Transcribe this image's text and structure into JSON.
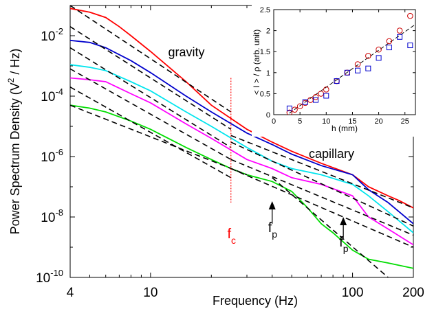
{
  "chart_data": [
    {
      "type": "line",
      "xscale": "log",
      "yscale": "log",
      "xlim": [
        4,
        200
      ],
      "ylim": [
        1e-10,
        0.1
      ],
      "xlabel": "Frequency (Hz)",
      "ylabel": "Power Spectrum Density (V",
      "ylabel_sup": "2",
      "ylabel_tail": " / Hz)",
      "xticks": [
        {
          "value": 4,
          "label": "4"
        },
        {
          "value": 10,
          "label": "10"
        },
        {
          "value": 100,
          "label": "100"
        },
        {
          "value": 200,
          "label": "200"
        }
      ],
      "yticks": [
        {
          "value": 1e-10,
          "base": "10",
          "exp": "-10"
        },
        {
          "value": 1e-08,
          "base": "10",
          "exp": "-8"
        },
        {
          "value": 1e-06,
          "base": "10",
          "exp": "-6"
        },
        {
          "value": 0.0001,
          "base": "10",
          "exp": "-4"
        },
        {
          "value": 0.01,
          "base": "10",
          "exp": "-2"
        }
      ],
      "annotations": {
        "gravity": "gravity",
        "capillary": "capillary",
        "fc_main": "f",
        "fc_sub": "c",
        "fp_main": "f",
        "fp_sub": "p"
      },
      "fc_value": 25,
      "fp_arrows": [
        {
          "x": 40,
          "y_tip": 3e-08,
          "y_tail": 6e-09
        },
        {
          "x": 90,
          "y_tip": 9e-09,
          "y_tail": 2e-09
        }
      ],
      "series": [
        {
          "color": "#ff0000",
          "x": [
            4,
            5,
            6,
            7,
            8,
            10,
            15,
            20,
            30,
            40,
            50,
            70,
            100,
            120,
            150,
            170,
            200
          ],
          "y": [
            0.08,
            0.06,
            0.04,
            0.02,
            0.01,
            0.003,
            0.0003,
            5e-05,
            8e-06,
            3e-06,
            1.5e-06,
            6e-07,
            2.5e-07,
            1e-07,
            5e-08,
            3.5e-08,
            2e-08
          ]
        },
        {
          "color": "#0000cc",
          "x": [
            4,
            5,
            6,
            8,
            10,
            15,
            20,
            30,
            40,
            50,
            70,
            100,
            120,
            150,
            200
          ],
          "y": [
            0.007,
            0.006,
            0.004,
            0.0015,
            0.0006,
            0.0001,
            3e-05,
            6e-06,
            2.5e-06,
            1.2e-06,
            5e-07,
            2.5e-07,
            8e-08,
            3e-08,
            6e-09
          ]
        },
        {
          "color": "#00e5ee",
          "x": [
            4,
            5,
            6,
            8,
            10,
            15,
            20,
            30,
            40,
            50,
            70,
            100,
            120,
            150,
            200
          ],
          "y": [
            0.0011,
            0.0009,
            0.0007,
            0.0003,
            0.00015,
            3e-05,
            1e-05,
            2e-06,
            7e-07,
            4e-07,
            2.5e-07,
            1.2e-07,
            5e-08,
            1.5e-08,
            3e-09
          ]
        },
        {
          "color": "#ff00ff",
          "x": [
            4,
            5,
            6,
            8,
            10,
            15,
            20,
            30,
            40,
            50,
            70,
            100,
            120,
            150,
            200
          ],
          "y": [
            0.0004,
            0.00035,
            0.0003,
            0.00012,
            6e-05,
            1.2e-05,
            4e-06,
            8e-07,
            4e-07,
            2e-07,
            1.2e-07,
            5e-08,
            1e-08,
            4e-09,
            1.2e-09
          ]
        },
        {
          "color": "#00dd00",
          "x": [
            4,
            5,
            6,
            8,
            10,
            15,
            20,
            25,
            30,
            40,
            50,
            60,
            70,
            80,
            90,
            100,
            120,
            150,
            200
          ],
          "y": [
            5e-05,
            4e-05,
            3e-05,
            1.5e-05,
            8e-06,
            2e-06,
            8e-07,
            4e-07,
            2.5e-07,
            1.5e-07,
            7e-08,
            2e-08,
            6e-09,
            3e-09,
            1.5e-09,
            8e-10,
            4e-10,
            3e-10,
            2e-10
          ]
        }
      ],
      "fits": [
        {
          "x": [
            4,
            25
          ],
          "y": [
            0.1,
            3e-05
          ]
        },
        {
          "x": [
            25,
            200
          ],
          "y": [
            5e-06,
            2e-08
          ]
        },
        {
          "x": [
            4,
            25
          ],
          "y": [
            0.02,
            8e-06
          ]
        },
        {
          "x": [
            25,
            200
          ],
          "y": [
            3e-06,
            5e-09
          ]
        },
        {
          "x": [
            4,
            25
          ],
          "y": [
            0.004,
            2e-06
          ]
        },
        {
          "x": [
            25,
            200
          ],
          "y": [
            8e-07,
            2.5e-09
          ]
        },
        {
          "x": [
            4,
            25
          ],
          "y": [
            0.0008,
            8e-07
          ]
        },
        {
          "x": [
            25,
            200
          ],
          "y": [
            4e-07,
            1e-09
          ]
        },
        {
          "x": [
            4,
            25
          ],
          "y": [
            0.0002,
            2e-07
          ]
        },
        {
          "x": [
            4,
            30
          ],
          "y": [
            5e-05,
            2.5e-07
          ]
        },
        {
          "x": [
            40,
            150
          ],
          "y": [
            2e-07,
            1e-10
          ]
        }
      ]
    },
    {
      "type": "scatter",
      "xlim": [
        0,
        27
      ],
      "ylim": [
        0,
        2.5
      ],
      "xlabel": "h (mm)",
      "ylabel": "< I > / ρ   (arb. unit)",
      "xticks": [
        "0",
        "5",
        "10",
        "15",
        "20",
        "25"
      ],
      "xtick_values": [
        0,
        5,
        10,
        15,
        20,
        25
      ],
      "yticks": [
        "0",
        "0.5",
        "1",
        "1.5",
        "2",
        "2.5"
      ],
      "ytick_values": [
        0,
        0.5,
        1,
        1.5,
        2,
        2.5
      ],
      "fit_line": {
        "x": [
          2,
          27
        ],
        "y": [
          -0.05,
          2.15
        ]
      },
      "series": [
        {
          "marker": "circle",
          "color": "#cc0000",
          "x": [
            3,
            4,
            5,
            6,
            7,
            8,
            9,
            10,
            12,
            14,
            16,
            18,
            20,
            22,
            24,
            26
          ],
          "y": [
            0.05,
            0.12,
            0.2,
            0.28,
            0.35,
            0.42,
            0.5,
            0.6,
            0.8,
            1.0,
            1.2,
            1.4,
            1.55,
            1.75,
            2.0,
            2.35
          ]
        },
        {
          "marker": "square",
          "color": "#0000cc",
          "x": [
            3,
            6,
            8,
            10,
            12,
            14,
            16,
            18,
            20,
            22,
            24,
            26
          ],
          "y": [
            0.15,
            0.3,
            0.35,
            0.45,
            0.8,
            1.0,
            1.05,
            1.1,
            1.35,
            1.6,
            1.85,
            1.65
          ]
        }
      ]
    }
  ]
}
